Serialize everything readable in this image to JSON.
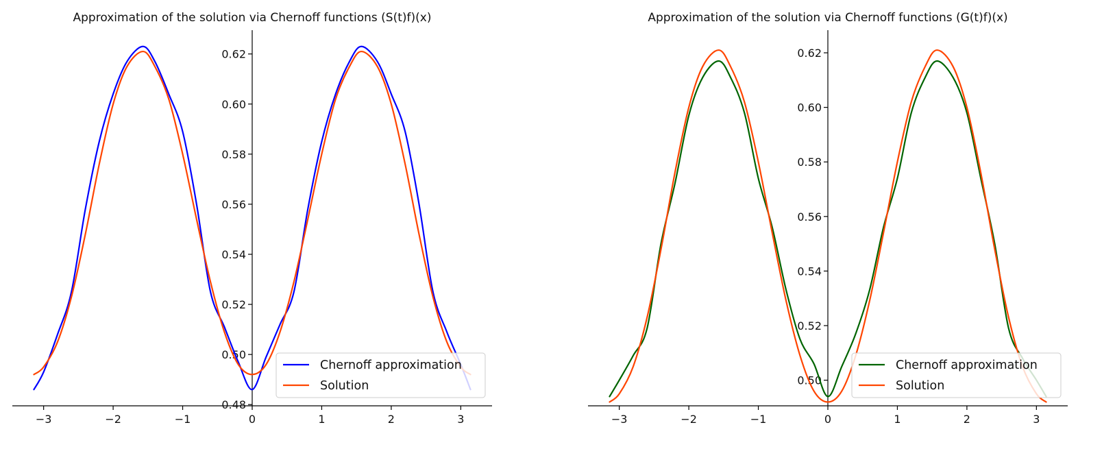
{
  "chart_data": [
    {
      "type": "line",
      "title": "Approximation of the solution via Chernoff functions (S(t)f)(x)",
      "xlabel": "",
      "ylabel": "",
      "xlim": [
        -3.45,
        3.45
      ],
      "ylim": [
        0.4795,
        0.6295
      ],
      "xticks": [
        -3,
        -2,
        -1,
        0,
        1,
        2,
        3
      ],
      "xtick_labels": [
        "−3",
        "−2",
        "−1",
        "0",
        "1",
        "2",
        "3"
      ],
      "yticks": [
        0.48,
        0.5,
        0.52,
        0.54,
        0.56,
        0.58,
        0.6,
        0.62
      ],
      "ytick_labels": [
        "0.48",
        "0.50",
        "0.52",
        "0.54",
        "0.56",
        "0.58",
        "0.60",
        "0.62"
      ],
      "grid": false,
      "legend_position": "lower-right",
      "spines": "centered-axes",
      "series": [
        {
          "name": "Chernoff approximation",
          "color": "#0000ff",
          "x": [
            -3.14,
            -3.0,
            -2.8,
            -2.6,
            -2.4,
            -2.2,
            -2.0,
            -1.8,
            -1.571,
            -1.4,
            -1.2,
            -1.0,
            -0.8,
            -0.6,
            -0.4,
            -0.2,
            0.0,
            0.2,
            0.4,
            0.6,
            0.8,
            1.0,
            1.2,
            1.4,
            1.571,
            1.8,
            2.0,
            2.2,
            2.4,
            2.6,
            2.8,
            3.0,
            3.14
          ],
          "values": [
            0.486,
            0.493,
            0.508,
            0.525,
            0.558,
            0.585,
            0.604,
            0.617,
            0.623,
            0.617,
            0.604,
            0.589,
            0.56,
            0.525,
            0.511,
            0.497,
            0.486,
            0.499,
            0.512,
            0.525,
            0.558,
            0.585,
            0.604,
            0.617,
            0.623,
            0.617,
            0.604,
            0.589,
            0.56,
            0.525,
            0.509,
            0.496,
            0.486
          ]
        },
        {
          "name": "Solution",
          "color": "#ff4500",
          "x": [
            -3.14,
            -3.0,
            -2.8,
            -2.6,
            -2.4,
            -2.2,
            -2.0,
            -1.8,
            -1.571,
            -1.4,
            -1.2,
            -1.0,
            -0.8,
            -0.6,
            -0.4,
            -0.2,
            0.0,
            0.2,
            0.4,
            0.6,
            0.8,
            1.0,
            1.2,
            1.4,
            1.571,
            1.8,
            2.0,
            2.2,
            2.4,
            2.6,
            2.8,
            3.0,
            3.14
          ],
          "values": [
            0.492,
            0.495,
            0.505,
            0.523,
            0.548,
            0.576,
            0.6,
            0.615,
            0.621,
            0.615,
            0.602,
            0.58,
            0.554,
            0.529,
            0.509,
            0.496,
            0.492,
            0.496,
            0.509,
            0.529,
            0.554,
            0.58,
            0.602,
            0.615,
            0.621,
            0.615,
            0.6,
            0.576,
            0.548,
            0.523,
            0.505,
            0.495,
            0.492
          ]
        }
      ]
    },
    {
      "type": "line",
      "title": "Approximation of the solution via Chernoff functions (G(t)f)(x)",
      "xlabel": "",
      "ylabel": "",
      "xlim": [
        -3.45,
        3.45
      ],
      "ylim": [
        0.4906,
        0.6283
      ],
      "xticks": [
        -3,
        -2,
        -1,
        0,
        1,
        2,
        3
      ],
      "xtick_labels": [
        "−3",
        "−2",
        "−1",
        "0",
        "1",
        "2",
        "3"
      ],
      "yticks": [
        0.5,
        0.52,
        0.54,
        0.56,
        0.58,
        0.6,
        0.62
      ],
      "ytick_labels": [
        "0.50",
        "0.52",
        "0.54",
        "0.56",
        "0.58",
        "0.60",
        "0.62"
      ],
      "grid": false,
      "legend_position": "lower-right",
      "spines": "centered-axes",
      "series": [
        {
          "name": "Chernoff approximation",
          "color": "#006400",
          "x": [
            -3.14,
            -3.0,
            -2.8,
            -2.6,
            -2.4,
            -2.2,
            -2.0,
            -1.8,
            -1.571,
            -1.4,
            -1.2,
            -1.0,
            -0.8,
            -0.6,
            -0.4,
            -0.2,
            0.0,
            0.2,
            0.4,
            0.6,
            0.8,
            1.0,
            1.2,
            1.4,
            1.571,
            1.8,
            2.0,
            2.2,
            2.4,
            2.6,
            2.8,
            3.0,
            3.14
          ],
          "values": [
            0.494,
            0.5,
            0.509,
            0.519,
            0.55,
            0.572,
            0.597,
            0.611,
            0.617,
            0.611,
            0.598,
            0.574,
            0.556,
            0.533,
            0.515,
            0.506,
            0.494,
            0.505,
            0.517,
            0.533,
            0.556,
            0.574,
            0.598,
            0.611,
            0.617,
            0.611,
            0.598,
            0.574,
            0.55,
            0.519,
            0.508,
            0.5,
            0.494
          ]
        },
        {
          "name": "Solution",
          "color": "#ff4500",
          "x": [
            -3.14,
            -3.0,
            -2.8,
            -2.6,
            -2.4,
            -2.2,
            -2.0,
            -1.8,
            -1.571,
            -1.4,
            -1.2,
            -1.0,
            -0.8,
            -0.6,
            -0.4,
            -0.2,
            0.0,
            0.2,
            0.4,
            0.6,
            0.8,
            1.0,
            1.2,
            1.4,
            1.571,
            1.8,
            2.0,
            2.2,
            2.4,
            2.6,
            2.8,
            3.0,
            3.14
          ],
          "values": [
            0.492,
            0.495,
            0.505,
            0.523,
            0.548,
            0.576,
            0.6,
            0.615,
            0.621,
            0.615,
            0.602,
            0.58,
            0.554,
            0.529,
            0.509,
            0.496,
            0.492,
            0.496,
            0.509,
            0.529,
            0.554,
            0.58,
            0.602,
            0.615,
            0.621,
            0.615,
            0.6,
            0.576,
            0.548,
            0.523,
            0.505,
            0.495,
            0.492
          ]
        }
      ]
    }
  ]
}
